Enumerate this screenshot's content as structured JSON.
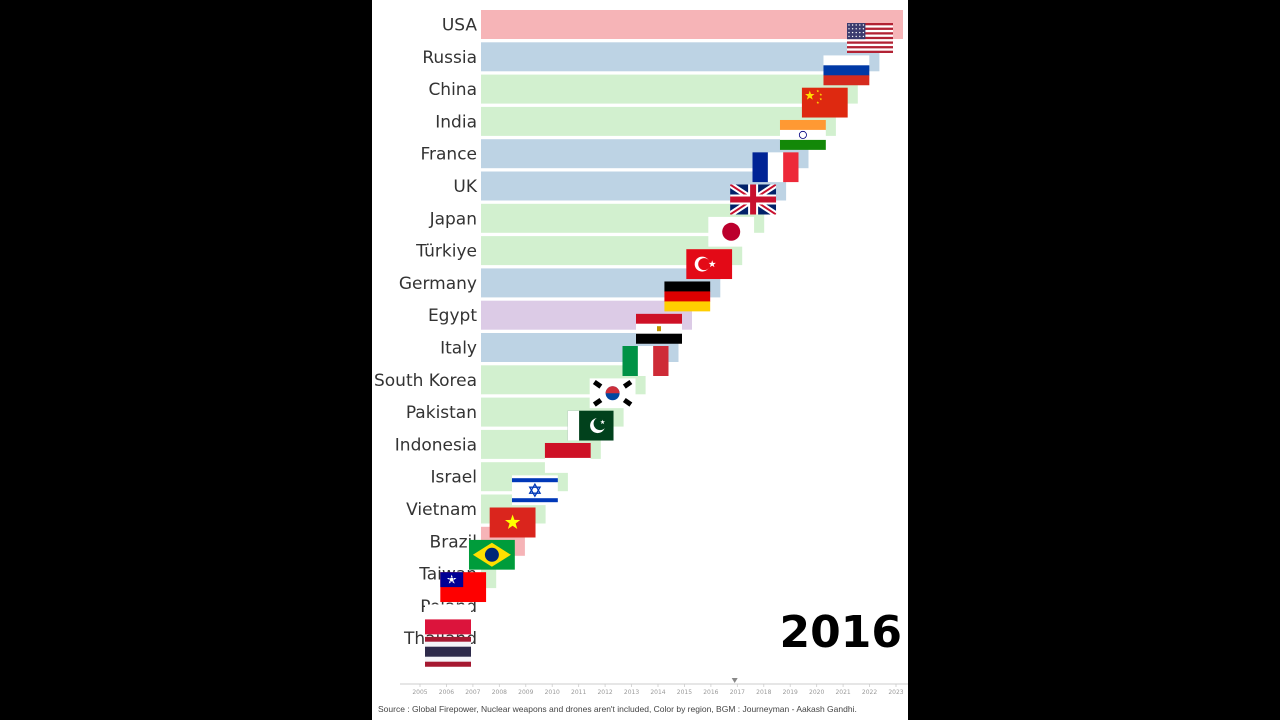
{
  "chart_data": {
    "type": "bar",
    "orientation": "horizontal",
    "year_label": "2016",
    "categories": [
      "USA",
      "Russia",
      "China",
      "India",
      "France",
      "UK",
      "Japan",
      "Türkiye",
      "Germany",
      "Egypt",
      "Italy",
      "South Korea",
      "Pakistan",
      "Indonesia",
      "Israel",
      "Vietnam",
      "Brazil",
      "Taiwan",
      "Poland",
      "Thailand"
    ],
    "values": [
      100,
      94.4,
      89.3,
      84.1,
      77.6,
      72.3,
      67.1,
      61.9,
      56.7,
      50.0,
      46.8,
      39.0,
      33.8,
      28.4,
      20.6,
      15.3,
      10.4,
      3.6,
      0,
      0
    ],
    "regions": [
      "Americas",
      "Europe",
      "Asia",
      "Asia",
      "Europe",
      "Europe",
      "Asia",
      "Asia",
      "Europe",
      "Africa",
      "Europe",
      "Asia",
      "Asia",
      "Asia",
      "Asia",
      "Asia",
      "Americas",
      "Asia",
      "Europe",
      "Asia"
    ],
    "region_colors": {
      "Americas": "#f6b4b7",
      "Europe": "#bdd3e4",
      "Asia": "#d2f0cf",
      "Africa": "#dccbe6"
    },
    "flags": [
      "us-flag",
      "russia-flag",
      "china-flag",
      "india-flag",
      "france-flag",
      "uk-flag",
      "japan-flag",
      "turkiye-flag",
      "germany-flag",
      "egypt-flag",
      "italy-flag",
      "south-korea-flag",
      "pakistan-flag",
      "indonesia-flag",
      "israel-flag",
      "vietnam-flag",
      "brazil-flag",
      "taiwan-flag",
      "poland-flag",
      "thailand-flag"
    ],
    "timeline": {
      "ticks": [
        "2005",
        "2006",
        "2007",
        "2008",
        "2009",
        "2010",
        "2011",
        "2012",
        "2013",
        "2014",
        "2015",
        "2016",
        "2017",
        "2018",
        "2019",
        "2020",
        "2021",
        "2022",
        "2023"
      ],
      "current": 2016.9
    },
    "source": "Source : Global Firepower, Nuclear weapons and drones aren't included, Color by region, BGM : Journeyman - Aakash Gandhi."
  }
}
